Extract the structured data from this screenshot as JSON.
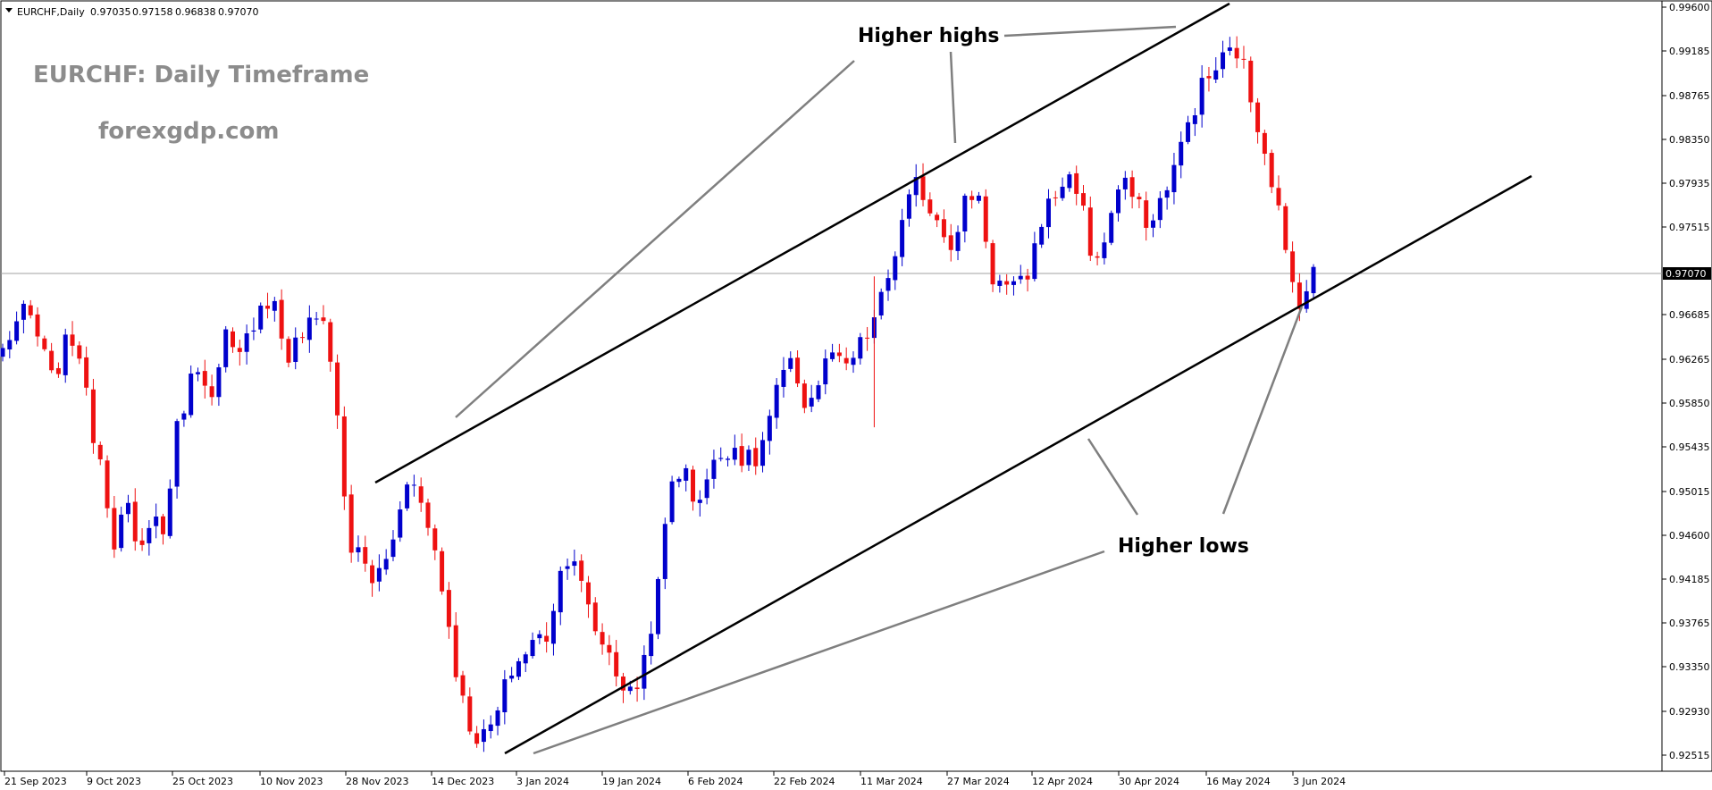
{
  "header": {
    "symbol": "EURCHF,Daily",
    "open": "0.97035",
    "high": "0.97158",
    "low": "0.96838",
    "close": "0.97070"
  },
  "watermark": {
    "title": "EURCHF: Daily Timeframe",
    "site": "forexgdp.com"
  },
  "annotations": {
    "higher_highs": "Higher highs",
    "higher_lows": "Higher lows"
  },
  "colors": {
    "bull": "#0000cc",
    "bear": "#ee1111",
    "trendline": "#000000",
    "pointer": "#7f7f7f",
    "watermark": "#8c8c8c"
  },
  "chart_data": {
    "type": "candlestick",
    "symbol": "EURCHF",
    "timeframe": "Daily",
    "current_price": "0.97070",
    "ylim": [
      0.9245,
      0.996
    ],
    "y_ticks": [
      "0.99600",
      "0.99185",
      "0.98765",
      "0.98350",
      "0.97935",
      "0.97515",
      "0.97070",
      "0.96685",
      "0.96265",
      "0.95850",
      "0.95435",
      "0.95015",
      "0.94600",
      "0.94185",
      "0.93765",
      "0.93350",
      "0.92930",
      "0.92515"
    ],
    "x_ticks": [
      "21 Sep 2023",
      "9 Oct 2023",
      "25 Oct 2023",
      "10 Nov 2023",
      "28 Nov 2023",
      "14 Dec 2023",
      "3 Jan 2024",
      "19 Jan 2024",
      "6 Feb 2024",
      "22 Feb 2024",
      "11 Mar 2024",
      "27 Mar 2024",
      "12 Apr 2024",
      "30 Apr 2024",
      "16 May 2024",
      "3 Jun 2024"
    ],
    "close_path": [
      0.9635,
      0.966,
      0.9672,
      0.9642,
      0.9605,
      0.9638,
      0.965,
      0.957,
      0.953,
      0.9455,
      0.949,
      0.943,
      0.9485,
      0.946,
      0.9555,
      0.96,
      0.9628,
      0.9582,
      0.9648,
      0.962,
      0.9655,
      0.9685,
      0.9678,
      0.9625,
      0.9648,
      0.966,
      0.967,
      0.958,
      0.945,
      0.9438,
      0.9415,
      0.9435,
      0.9475,
      0.953,
      0.948,
      0.9445,
      0.938,
      0.931,
      0.9272,
      0.9268,
      0.929,
      0.933,
      0.9345,
      0.936,
      0.9365,
      0.942,
      0.9452,
      0.94,
      0.9368,
      0.935,
      0.932,
      0.9305,
      0.935,
      0.941,
      0.951,
      0.9525,
      0.949,
      0.9515,
      0.9535,
      0.9548,
      0.953,
      0.953,
      0.957,
      0.961,
      0.962,
      0.958,
      0.9605,
      0.9635,
      0.9612,
      0.9632,
      0.965,
      0.968,
      0.972,
      0.9765,
      0.9795,
      0.977,
      0.9755,
      0.973,
      0.9785,
      0.978,
      0.9705,
      0.9695,
      0.969,
      0.971,
      0.976,
      0.978,
      0.98,
      0.979,
      0.9725,
      0.973,
      0.9785,
      0.979,
      0.9765,
      0.9755,
      0.979,
      0.9815,
      0.9855,
      0.9885,
      0.99,
      0.9915,
      0.992,
      0.987,
      0.983,
      0.978,
      0.9705,
      0.9682,
      0.9707
    ],
    "trendlines": [
      {
        "name": "upper channel line",
        "from": [
          "28 Nov 2023",
          0.9512
        ],
        "to": [
          "19 May 2024",
          0.996
        ]
      },
      {
        "name": "lower channel line",
        "from": [
          "3 Jan 2024",
          0.9256
        ],
        "to": [
          "13 Jun 2024",
          0.9798
        ]
      }
    ]
  }
}
